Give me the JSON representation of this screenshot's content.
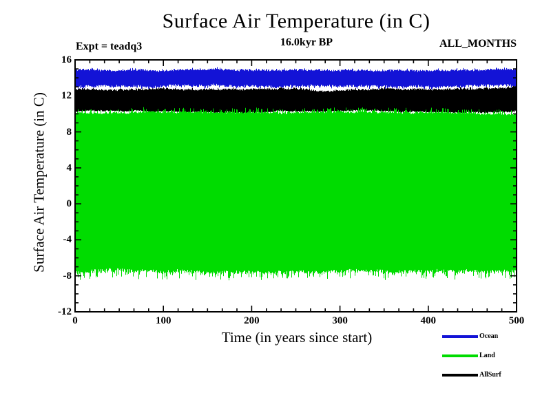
{
  "header": {
    "title": "Surface Air Temperature (in C)",
    "experiment_label": "Expt = teadq3",
    "epoch_label": "16.0kyr BP",
    "months_label": "ALL_MONTHS"
  },
  "chart_data": {
    "type": "area",
    "title": "Surface Air Temperature (in C)",
    "xlabel": "Time (in years since start)",
    "ylabel": "Surface Air Temperature (in C)",
    "xlim": [
      0,
      500
    ],
    "ylim": [
      -12,
      16
    ],
    "x_major_ticks": [
      0,
      100,
      200,
      300,
      400,
      500
    ],
    "y_major_ticks": [
      16,
      12,
      8,
      4,
      0,
      -4,
      -8,
      -12
    ],
    "x_minor_divisions": 6,
    "y_minor_divisions": 4,
    "grid": false,
    "legend_position": "bottom-right",
    "description": "Monthly time series over 500 years; the dense seasonal oscillation of each series renders as a solid band between its seasonal minimum and maximum temperature.",
    "series": [
      {
        "name": "Ocean",
        "color": "#1313d6",
        "seasonal_max_c": 14.9,
        "seasonal_min_c": 13.1,
        "band": {
          "top": {
            "mean": 14.85,
            "noise": 0.1,
            "spike": 0.15,
            "spike_p": 0.25
          },
          "bottom": {
            "mean": 13.1,
            "noise": 0.13,
            "spike": -0.25,
            "spike_p": 0.3
          }
        }
      },
      {
        "name": "Land",
        "color": "#00dc00",
        "seasonal_max_c": 10.1,
        "seasonal_min_c": -7.6,
        "band": {
          "top": {
            "mean": 10.12,
            "noise": 0.1,
            "spike": 0.5,
            "spike_p": 0.35
          },
          "bottom": {
            "mean": -7.55,
            "noise": 0.22,
            "spike": -0.8,
            "spike_p": 0.3
          }
        }
      },
      {
        "name": "AllSurf",
        "color": "#000000",
        "seasonal_max_c": 12.7,
        "seasonal_min_c": 10.2,
        "band": {
          "top": {
            "mean": 12.72,
            "noise": 0.1,
            "spike": 0.15,
            "spike_p": 0.22
          },
          "bottom": {
            "mean": 10.22,
            "noise": 0.06,
            "spike": 0.1,
            "spike_p": 0.1
          }
        }
      }
    ],
    "draw_order": [
      "Ocean",
      "AllSurf",
      "Land"
    ],
    "legend_order": [
      "Ocean",
      "Land",
      "AllSurf"
    ],
    "seed": 20163,
    "edge_wander": 0.05
  }
}
